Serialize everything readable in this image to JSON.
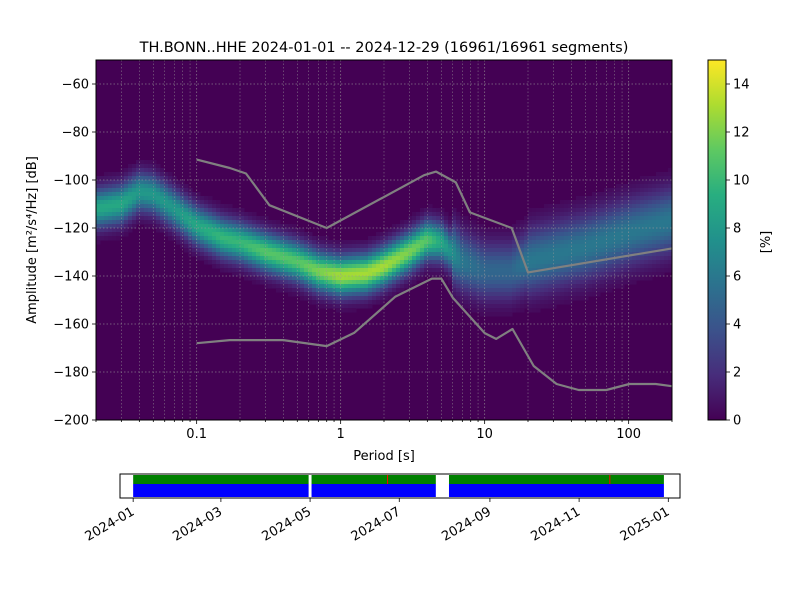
{
  "chart_data": {
    "type": "heatmap",
    "title": "TH.BONN..HHE   2024-01-01 -- 2024-12-29  (16961/16961 segments)",
    "xlabel": "Period [s]",
    "ylabel": "Amplitude [m²/s⁴/Hz] [dB]",
    "xscale": "log",
    "xlim": [
      0.02,
      200
    ],
    "ylim": [
      -200,
      -50
    ],
    "x_ticks": [
      0.1,
      1,
      10,
      100
    ],
    "x_tick_labels": [
      "0.1",
      "1",
      "10",
      "100"
    ],
    "y_ticks": [
      -60,
      -80,
      -100,
      -120,
      -140,
      -160,
      -180,
      -200
    ],
    "y_tick_labels": [
      "−60",
      "−80",
      "−100",
      "−120",
      "−140",
      "−160",
      "−180",
      "−200"
    ],
    "grid": true,
    "colorbar": {
      "label": "[%]",
      "range": [
        0,
        15
      ],
      "ticks": [
        0,
        2,
        4,
        6,
        8,
        10,
        12,
        14
      ],
      "tick_labels": [
        "0",
        "2",
        "4",
        "6",
        "8",
        "10",
        "12",
        "14"
      ],
      "colormap": "viridis"
    },
    "ppsd_mode": {
      "period": [
        0.02,
        0.03,
        0.04,
        0.05,
        0.07,
        0.1,
        0.15,
        0.2,
        0.3,
        0.5,
        0.7,
        1.0,
        1.5,
        2.0,
        3.0,
        4.0,
        5.0,
        7.0,
        10.0,
        15.0,
        20.0,
        50.0,
        100.0,
        200.0
      ],
      "amplitude": [
        -112,
        -110,
        -105,
        -106,
        -112,
        -119,
        -124,
        -126,
        -130,
        -134,
        -138,
        -140,
        -139,
        -136,
        -130,
        -125,
        -126,
        -134,
        -138,
        -138,
        -134,
        -128,
        -122,
        -117
      ],
      "peak_percent": [
        9,
        9,
        8,
        8,
        8,
        9,
        10,
        10,
        11,
        11,
        12,
        13,
        13,
        13,
        12,
        11,
        9,
        6,
        5,
        5,
        6,
        6,
        6,
        6
      ]
    },
    "noise_models": [
      {
        "period": [
          0.1,
          0.17,
          0.22,
          0.32,
          0.8,
          3.8,
          4.6,
          6.3,
          7.9,
          15.4,
          20.0,
          200.0
        ],
        "amplitude": [
          -91.5,
          -95,
          -97.3,
          -110.5,
          -120,
          -98,
          -96.5,
          -101,
          -113.5,
          -120,
          -138.5,
          -128.5
        ]
      },
      {
        "period": [
          0.1,
          0.17,
          0.4,
          0.8,
          1.24,
          2.4,
          4.3,
          5.0,
          6.0,
          10.0,
          12.0,
          15.6,
          21.9,
          31.6,
          45.0,
          70.0,
          101.0,
          154.0,
          200.0
        ],
        "amplitude": [
          -168,
          -166.7,
          -166.7,
          -169.2,
          -163.7,
          -148.6,
          -141.1,
          -141.1,
          -149,
          -163.8,
          -166.2,
          -162.1,
          -177.5,
          -185,
          -187.5,
          -187.5,
          -185,
          -185,
          -185.9
        ]
      }
    ],
    "coverage": {
      "date_ticks": [
        "2024-01",
        "2024-03",
        "2024-05",
        "2024-07",
        "2024-09",
        "2024-11",
        "2025-01"
      ],
      "range": [
        "2023-12-23",
        "2025-01-09"
      ],
      "segments": [
        {
          "start": "2024-01-01",
          "end": "2024-04-30"
        },
        {
          "start": "2024-05-02",
          "end": "2024-07-26"
        },
        {
          "start": "2024-08-04",
          "end": "2024-12-29"
        }
      ],
      "data_color": "#0000ff",
      "used_color": "#008000",
      "marker_color": "#ff0000",
      "markers": [
        "2024-06-23",
        "2024-11-22"
      ]
    }
  }
}
